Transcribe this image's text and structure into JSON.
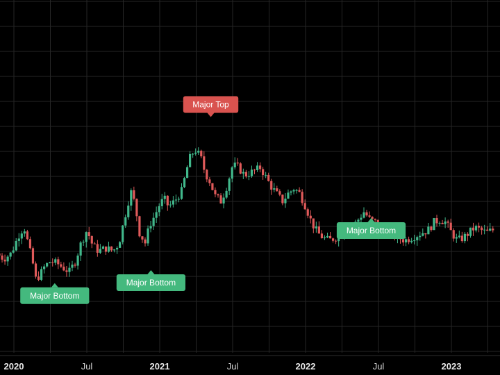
{
  "chart_data": {
    "type": "candlestick",
    "title": "",
    "xlabel": "",
    "ylabel": "",
    "grid": true,
    "colors": {
      "up": "#41b88b",
      "down": "#e05a5a",
      "grid": "#262626",
      "background": "#000000",
      "top_label": "#d9534f",
      "bottom_label": "#44b97e"
    },
    "x_ticks": [
      {
        "label": "2020",
        "t": 0.0,
        "bold": true
      },
      {
        "label": "Jul",
        "t": 0.5,
        "bold": false
      },
      {
        "label": "2021",
        "t": 1.0,
        "bold": true
      },
      {
        "label": "Jul",
        "t": 1.5,
        "bold": false
      },
      {
        "label": "2022",
        "t": 2.0,
        "bold": true
      },
      {
        "label": "Jul",
        "t": 2.5,
        "bold": false
      },
      {
        "label": "2023",
        "t": 3.0,
        "bold": true
      }
    ],
    "time_range": [
      -0.1,
      3.3
    ],
    "price_range": [
      0,
      100
    ],
    "price_path": [
      [
        -0.1,
        44
      ],
      [
        -0.05,
        42
      ],
      [
        0.0,
        44
      ],
      [
        0.03,
        48
      ],
      [
        0.06,
        52
      ],
      [
        0.09,
        54
      ],
      [
        0.12,
        47
      ],
      [
        0.15,
        40
      ],
      [
        0.17,
        34
      ],
      [
        0.2,
        36
      ],
      [
        0.23,
        39
      ],
      [
        0.27,
        41
      ],
      [
        0.32,
        40
      ],
      [
        0.37,
        38
      ],
      [
        0.4,
        37
      ],
      [
        0.44,
        41
      ],
      [
        0.48,
        48
      ],
      [
        0.52,
        53
      ],
      [
        0.56,
        47
      ],
      [
        0.6,
        45
      ],
      [
        0.65,
        46
      ],
      [
        0.7,
        45
      ],
      [
        0.74,
        48
      ],
      [
        0.78,
        58
      ],
      [
        0.82,
        68
      ],
      [
        0.85,
        63
      ],
      [
        0.88,
        52
      ],
      [
        0.92,
        48
      ],
      [
        0.95,
        55
      ],
      [
        0.98,
        58
      ],
      [
        1.02,
        63
      ],
      [
        1.05,
        65
      ],
      [
        1.08,
        62
      ],
      [
        1.12,
        64
      ],
      [
        1.17,
        68
      ],
      [
        1.22,
        80
      ],
      [
        1.26,
        84
      ],
      [
        1.3,
        81
      ],
      [
        1.33,
        75
      ],
      [
        1.36,
        72
      ],
      [
        1.4,
        66
      ],
      [
        1.44,
        64
      ],
      [
        1.48,
        70
      ],
      [
        1.52,
        78
      ],
      [
        1.56,
        77
      ],
      [
        1.6,
        74
      ],
      [
        1.64,
        75
      ],
      [
        1.68,
        76
      ],
      [
        1.71,
        77
      ],
      [
        1.74,
        74
      ],
      [
        1.78,
        70
      ],
      [
        1.82,
        67
      ],
      [
        1.86,
        64
      ],
      [
        1.9,
        67
      ],
      [
        1.94,
        69
      ],
      [
        1.98,
        67
      ],
      [
        2.02,
        62
      ],
      [
        2.06,
        56
      ],
      [
        2.1,
        52
      ],
      [
        2.14,
        50
      ],
      [
        2.18,
        49
      ],
      [
        2.22,
        50
      ],
      [
        2.26,
        51
      ],
      [
        2.3,
        53
      ],
      [
        2.34,
        54
      ],
      [
        2.38,
        57
      ],
      [
        2.42,
        60
      ],
      [
        2.46,
        57
      ],
      [
        2.5,
        56
      ],
      [
        2.54,
        54
      ],
      [
        2.58,
        52
      ],
      [
        2.62,
        51
      ],
      [
        2.66,
        50
      ],
      [
        2.7,
        49
      ],
      [
        2.74,
        50
      ],
      [
        2.78,
        51
      ],
      [
        2.82,
        52
      ],
      [
        2.86,
        53
      ],
      [
        2.9,
        56
      ],
      [
        2.94,
        57
      ],
      [
        2.98,
        56
      ],
      [
        3.02,
        52
      ],
      [
        3.06,
        49
      ],
      [
        3.1,
        50
      ],
      [
        3.14,
        52
      ],
      [
        3.18,
        54
      ],
      [
        3.22,
        53
      ],
      [
        3.26,
        52
      ],
      [
        3.3,
        53
      ]
    ],
    "annotations": [
      {
        "text": "Major Bottom",
        "kind": "bottom",
        "t": 0.28,
        "price": 31
      },
      {
        "text": "Major Bottom",
        "kind": "bottom",
        "t": 0.94,
        "price": 36
      },
      {
        "text": "Major Top",
        "kind": "top",
        "t": 1.35,
        "price": 98
      },
      {
        "text": "Major Bottom",
        "kind": "bottom",
        "t": 2.45,
        "price": 56
      }
    ]
  }
}
